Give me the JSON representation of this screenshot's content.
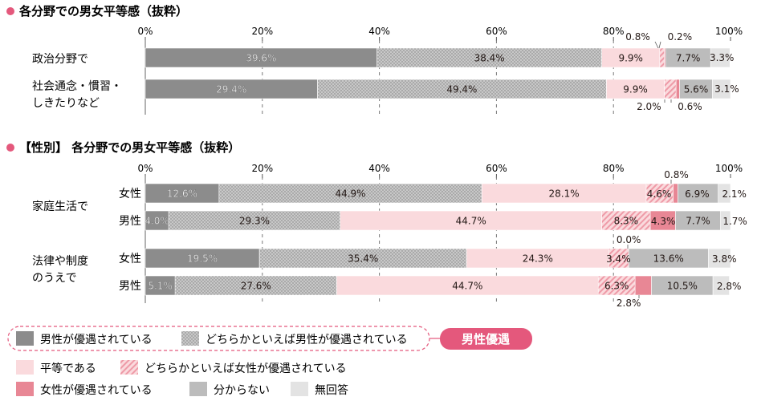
{
  "colors": {
    "male_preferred": "#8c8c8c",
    "rather_male": "#c4c4c4",
    "equal": "#fadadd",
    "rather_female": "#f4b3bc",
    "female_preferred": "#e88795",
    "unknown": "#bcbcbc",
    "no_answer": "#e3e3e3",
    "accent": "#e4587c"
  },
  "legend": {
    "items": [
      {
        "key": "male_preferred",
        "label": "男性が優遇されている",
        "icon": "solid-gray-swatch"
      },
      {
        "key": "rather_male",
        "label": "どちらかといえば男性が優遇されている",
        "icon": "dotted-gray-swatch"
      },
      {
        "key": "equal",
        "label": "平等である",
        "icon": "light-pink-swatch"
      },
      {
        "key": "rather_female",
        "label": "どちらかといえば女性が優遇されている",
        "icon": "hatched-pink-swatch"
      },
      {
        "key": "female_preferred",
        "label": "女性が優遇されている",
        "icon": "pink-swatch"
      },
      {
        "key": "unknown",
        "label": "分からない",
        "icon": "gray-swatch"
      },
      {
        "key": "no_answer",
        "label": "無回答",
        "icon": "light-gray-swatch"
      }
    ],
    "badge": "男性優遇"
  },
  "chart_data": [
    {
      "type": "bar",
      "orientation": "horizontal",
      "stacked": true,
      "title": "各分野での男女平等感（抜粋）",
      "xlim": [
        0,
        100
      ],
      "ticks": [
        "0%",
        "20%",
        "40%",
        "60%",
        "80%",
        "100%"
      ],
      "grid": true,
      "categories": [
        {
          "label_lines": [
            "政治分野で"
          ],
          "sub": ""
        },
        {
          "label_lines": [
            "社会通念・慣習・",
            "しきたりなど"
          ],
          "sub": ""
        }
      ],
      "series": [
        {
          "name": "男性が優遇されている",
          "values": [
            39.6,
            29.4
          ]
        },
        {
          "name": "どちらかといえば男性が優遇されている",
          "values": [
            38.4,
            49.4
          ]
        },
        {
          "name": "平等である",
          "values": [
            9.9,
            9.9
          ]
        },
        {
          "name": "どちらかといえば女性が優遇されている",
          "values": [
            0.8,
            2.0
          ]
        },
        {
          "name": "女性が優遇されている",
          "values": [
            0.2,
            0.6
          ]
        },
        {
          "name": "分からない",
          "values": [
            7.7,
            5.6
          ]
        },
        {
          "name": "無回答",
          "values": [
            3.3,
            3.1
          ]
        }
      ]
    },
    {
      "type": "bar",
      "orientation": "horizontal",
      "stacked": true,
      "title": "【性別】 各分野での男女平等感（抜粋）",
      "xlim": [
        0,
        100
      ],
      "ticks": [
        "0%",
        "20%",
        "40%",
        "60%",
        "80%",
        "100%"
      ],
      "grid": true,
      "groups": [
        {
          "label_lines": [
            "家庭生活で"
          ]
        },
        {
          "label_lines": [
            "法律や制度",
            "のうえで"
          ]
        }
      ],
      "categories": [
        {
          "group": 0,
          "sub": "女性"
        },
        {
          "group": 0,
          "sub": "男性"
        },
        {
          "group": 1,
          "sub": "女性"
        },
        {
          "group": 1,
          "sub": "男性"
        }
      ],
      "series": [
        {
          "name": "男性が優遇されている",
          "values": [
            12.6,
            4.0,
            19.5,
            5.1
          ]
        },
        {
          "name": "どちらかといえば男性が優遇されている",
          "values": [
            44.9,
            29.3,
            35.4,
            27.6
          ]
        },
        {
          "name": "平等である",
          "values": [
            28.1,
            44.7,
            24.3,
            44.7
          ]
        },
        {
          "name": "どちらかといえば女性が優遇されている",
          "values": [
            4.6,
            8.3,
            3.4,
            6.3
          ]
        },
        {
          "name": "女性が優遇されている",
          "values": [
            0.8,
            4.3,
            0.0,
            2.8
          ]
        },
        {
          "name": "分からない",
          "values": [
            6.9,
            7.7,
            13.6,
            10.5
          ]
        },
        {
          "name": "無回答",
          "values": [
            2.1,
            1.7,
            3.8,
            2.8
          ]
        }
      ]
    }
  ]
}
